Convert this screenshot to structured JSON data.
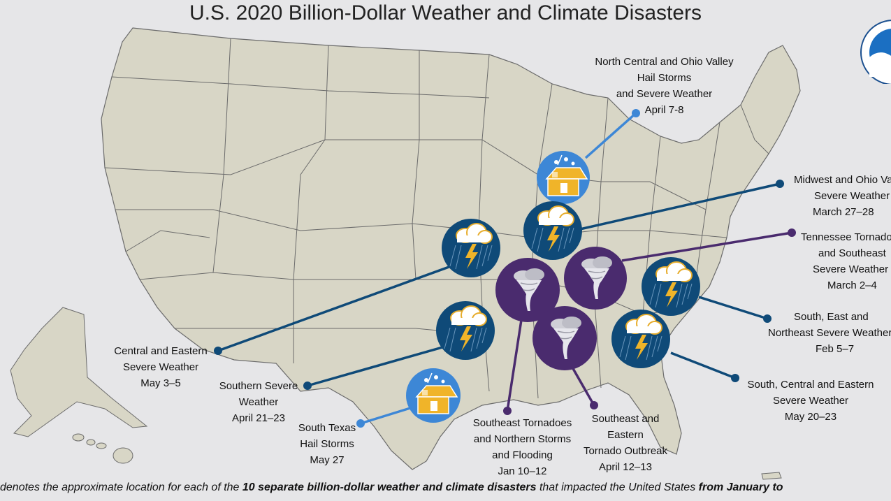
{
  "title": "U.S. 2020 Billion-Dollar Weather and Climate Disasters",
  "colors": {
    "land": "#d8d6c6",
    "border": "#6b6b6b",
    "water": "#e6e6e8",
    "hail": "#3d87d6",
    "severe": "#0f4a78",
    "tornado": "#4a2b6e"
  },
  "events": [
    {
      "id": "nc-ohio-hail",
      "type": "hail",
      "lines": [
        "North Central and Ohio Valley",
        "Hail Storms",
        "and Severe Weather",
        "April 7-8"
      ]
    },
    {
      "id": "midwest-ohio",
      "type": "severe",
      "lines": [
        "Midwest and Ohio Valley",
        "Severe Weather",
        "March 27–28"
      ]
    },
    {
      "id": "tennessee-tornado",
      "type": "tornado",
      "lines": [
        "Tennessee Tornadoes",
        "and Southeast",
        "Severe Weather",
        "March 2–4"
      ]
    },
    {
      "id": "south-east-ne",
      "type": "severe",
      "lines": [
        "South, East and",
        "Northeast Severe Weather",
        "Feb 5–7"
      ]
    },
    {
      "id": "south-central-eastern",
      "type": "severe",
      "lines": [
        "South, Central and Eastern",
        "Severe Weather",
        "May 20–23"
      ]
    },
    {
      "id": "se-eastern-outbreak",
      "type": "tornado",
      "lines": [
        "Southeast and",
        "Eastern",
        "Tornado Outbreak",
        "April 12–13"
      ]
    },
    {
      "id": "se-tornado-flooding",
      "type": "tornado",
      "lines": [
        "Southeast Tornadoes",
        "and Northern Storms",
        "and Flooding",
        "Jan 10–12"
      ]
    },
    {
      "id": "south-texas-hail",
      "type": "hail",
      "lines": [
        "South Texas",
        "Hail Storms",
        "May 27"
      ]
    },
    {
      "id": "southern-severe",
      "type": "severe",
      "lines": [
        "Southern Severe",
        "Weather",
        "April 21–23"
      ]
    },
    {
      "id": "central-eastern",
      "type": "severe",
      "lines": [
        "Central and Eastern",
        "Severe Weather",
        "May 3–5"
      ]
    }
  ],
  "footer": {
    "part1": "denotes the approximate location for each of the ",
    "part2": "10 separate billion-dollar weather and climate disasters",
    "part3": " that impacted the United States ",
    "part4": "from January to"
  }
}
